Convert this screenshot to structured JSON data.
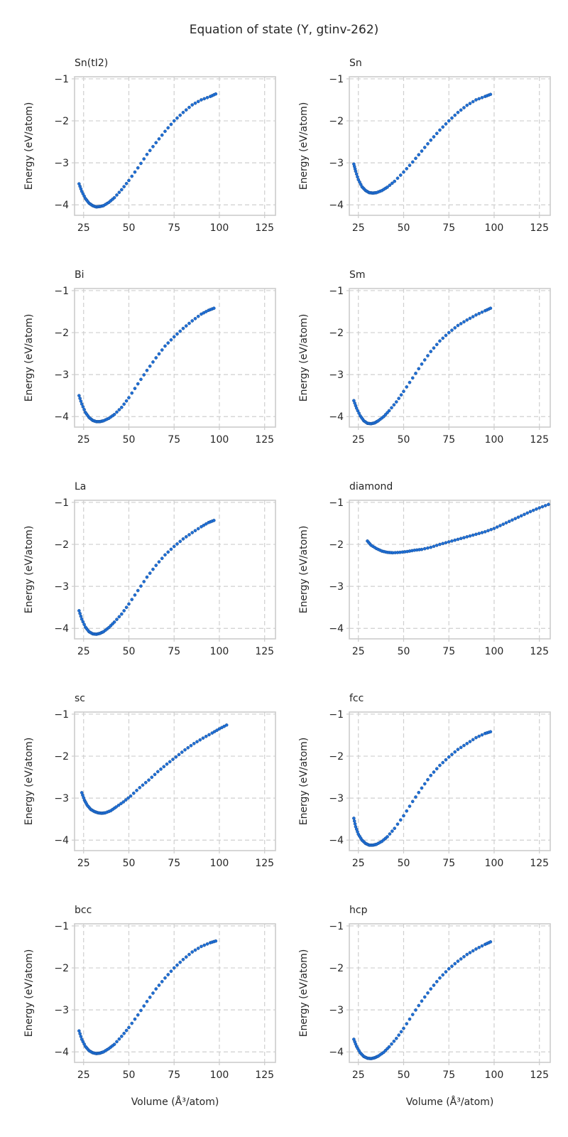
{
  "figure": {
    "title": "Equation of state (Y, gtinv-262)",
    "xlabel": "Volume (Å³/atom)",
    "ylabel": "Energy (eV/atom)"
  },
  "colors": {
    "points": "#1f6fd6",
    "points_edge": "#0d3f80",
    "grid": "#cfcfcf",
    "frame": "#cccccc"
  },
  "chart_data": [
    {
      "type": "scatter",
      "title": "Sn(tI2)",
      "xlabel": "",
      "ylabel": "Energy (eV/atom)",
      "xlim": [
        20,
        131
      ],
      "ylim": [
        -4.25,
        -0.95
      ],
      "xticks": [
        25,
        50,
        75,
        100,
        125
      ],
      "yticks": [
        -4,
        -3,
        -2,
        -1
      ],
      "grid": true,
      "series": [
        {
          "x": [
            22.5,
            24.0,
            26.0,
            28.0,
            30.0,
            32.0,
            34.0,
            36.0,
            39.0,
            42.0,
            46.0,
            50.0,
            55.0,
            60.0,
            65.0,
            70.0,
            75.0,
            80.0,
            85.0,
            90.0,
            95.0,
            98.0
          ],
          "y": [
            -3.5,
            -3.68,
            -3.85,
            -3.96,
            -4.02,
            -4.05,
            -4.04,
            -4.02,
            -3.94,
            -3.83,
            -3.64,
            -3.42,
            -3.12,
            -2.8,
            -2.52,
            -2.25,
            -2.0,
            -1.8,
            -1.62,
            -1.5,
            -1.42,
            -1.36
          ]
        }
      ]
    },
    {
      "type": "scatter",
      "title": "Sn",
      "xlabel": "",
      "ylabel": "Energy (eV/atom)",
      "xlim": [
        20,
        131
      ],
      "ylim": [
        -4.25,
        -0.95
      ],
      "xticks": [
        25,
        50,
        75,
        100,
        125
      ],
      "yticks": [
        -4,
        -3,
        -2,
        -1
      ],
      "grid": true,
      "series": [
        {
          "x": [
            22.5,
            23.5,
            25.0,
            27.0,
            29.0,
            31.0,
            33.0,
            35.0,
            38.0,
            41.0,
            45.0,
            50.0,
            55.0,
            60.0,
            65.0,
            70.0,
            75.0,
            80.0,
            85.0,
            90.0,
            95.0,
            98.0
          ],
          "y": [
            -3.03,
            -3.2,
            -3.4,
            -3.57,
            -3.66,
            -3.71,
            -3.72,
            -3.71,
            -3.66,
            -3.58,
            -3.44,
            -3.22,
            -2.98,
            -2.72,
            -2.46,
            -2.22,
            -2.0,
            -1.8,
            -1.63,
            -1.5,
            -1.42,
            -1.37
          ]
        }
      ]
    },
    {
      "type": "scatter",
      "title": "Bi",
      "xlabel": "",
      "ylabel": "Energy (eV/atom)",
      "xlim": [
        20,
        131
      ],
      "ylim": [
        -4.25,
        -0.95
      ],
      "xticks": [
        25,
        50,
        75,
        100,
        125
      ],
      "yticks": [
        -4,
        -3,
        -2,
        -1
      ],
      "grid": true,
      "series": [
        {
          "x": [
            22.5,
            24.0,
            26.0,
            28.0,
            30.0,
            32.0,
            34.0,
            36.0,
            39.0,
            42.0,
            46.0,
            50.0,
            55.0,
            60.0,
            65.0,
            70.0,
            75.0,
            80.0,
            85.0,
            90.0,
            94.0,
            97.0
          ],
          "y": [
            -3.5,
            -3.7,
            -3.9,
            -4.02,
            -4.09,
            -4.12,
            -4.12,
            -4.1,
            -4.04,
            -3.95,
            -3.78,
            -3.55,
            -3.22,
            -2.9,
            -2.6,
            -2.32,
            -2.1,
            -1.9,
            -1.72,
            -1.56,
            -1.47,
            -1.42
          ]
        }
      ]
    },
    {
      "type": "scatter",
      "title": "Sm",
      "xlabel": "",
      "ylabel": "Energy (eV/atom)",
      "xlim": [
        20,
        131
      ],
      "ylim": [
        -4.25,
        -0.95
      ],
      "xticks": [
        25,
        50,
        75,
        100,
        125
      ],
      "yticks": [
        -4,
        -3,
        -2,
        -1
      ],
      "grid": true,
      "series": [
        {
          "x": [
            22.5,
            24.0,
            26.0,
            28.0,
            30.0,
            32.0,
            34.0,
            36.0,
            39.0,
            42.0,
            46.0,
            50.0,
            55.0,
            60.0,
            65.0,
            70.0,
            75.0,
            80.0,
            85.0,
            90.0,
            95.0,
            98.0
          ],
          "y": [
            -3.62,
            -3.8,
            -3.98,
            -4.1,
            -4.16,
            -4.17,
            -4.15,
            -4.1,
            -4.0,
            -3.86,
            -3.65,
            -3.4,
            -3.08,
            -2.75,
            -2.45,
            -2.2,
            -2.0,
            -1.83,
            -1.7,
            -1.58,
            -1.48,
            -1.42
          ]
        }
      ]
    },
    {
      "type": "scatter",
      "title": "La",
      "xlabel": "",
      "ylabel": "Energy (eV/atom)",
      "xlim": [
        20,
        131
      ],
      "ylim": [
        -4.25,
        -0.95
      ],
      "xticks": [
        25,
        50,
        75,
        100,
        125
      ],
      "yticks": [
        -4,
        -3,
        -2,
        -1
      ],
      "grid": true,
      "series": [
        {
          "x": [
            22.5,
            24.0,
            26.0,
            28.0,
            30.0,
            32.0,
            34.0,
            36.0,
            39.0,
            42.0,
            46.0,
            50.0,
            55.0,
            60.0,
            65.0,
            70.0,
            75.0,
            80.0,
            85.0,
            90.0,
            94.0,
            97.0
          ],
          "y": [
            -3.58,
            -3.78,
            -3.97,
            -4.08,
            -4.13,
            -4.14,
            -4.12,
            -4.08,
            -3.98,
            -3.85,
            -3.66,
            -3.42,
            -3.1,
            -2.78,
            -2.5,
            -2.25,
            -2.05,
            -1.87,
            -1.72,
            -1.58,
            -1.48,
            -1.43
          ]
        }
      ]
    },
    {
      "type": "scatter",
      "title": "diamond",
      "xlabel": "",
      "ylabel": "Energy (eV/atom)",
      "xlim": [
        20,
        131
      ],
      "ylim": [
        -4.25,
        -0.95
      ],
      "xticks": [
        25,
        50,
        75,
        100,
        125
      ],
      "yticks": [
        -4,
        -3,
        -2,
        -1
      ],
      "grid": true,
      "series": [
        {
          "x": [
            30.0,
            32.0,
            35.0,
            38.0,
            41.0,
            44.0,
            48.0,
            52.0,
            56.0,
            60.0,
            65.0,
            70.0,
            75.0,
            80.0,
            85.0,
            90.0,
            95.0,
            100.0,
            105.0,
            110.0,
            115.0,
            120.0,
            125.0,
            130.0
          ],
          "y": [
            -1.92,
            -2.02,
            -2.1,
            -2.16,
            -2.19,
            -2.2,
            -2.19,
            -2.17,
            -2.14,
            -2.12,
            -2.07,
            -2.0,
            -1.94,
            -1.88,
            -1.82,
            -1.76,
            -1.7,
            -1.62,
            -1.52,
            -1.42,
            -1.32,
            -1.22,
            -1.13,
            -1.05
          ]
        }
      ]
    },
    {
      "type": "scatter",
      "title": "sc",
      "xlabel": "",
      "ylabel": "Energy (eV/atom)",
      "xlim": [
        20,
        131
      ],
      "ylim": [
        -4.25,
        -0.95
      ],
      "xticks": [
        25,
        50,
        75,
        100,
        125
      ],
      "yticks": [
        -4,
        -3,
        -2,
        -1
      ],
      "grid": true,
      "series": [
        {
          "x": [
            24.0,
            25.5,
            27.0,
            29.0,
            31.0,
            33.0,
            35.0,
            37.0,
            40.0,
            43.0,
            47.0,
            51.0,
            56.0,
            61.0,
            66.0,
            71.0,
            76.0,
            81.0,
            86.0,
            91.0,
            96.0,
            100.0,
            104.0
          ],
          "y": [
            -2.87,
            -3.05,
            -3.17,
            -3.27,
            -3.32,
            -3.35,
            -3.36,
            -3.35,
            -3.3,
            -3.21,
            -3.09,
            -2.95,
            -2.75,
            -2.57,
            -2.37,
            -2.19,
            -2.02,
            -1.85,
            -1.7,
            -1.57,
            -1.45,
            -1.35,
            -1.26
          ]
        }
      ]
    },
    {
      "type": "scatter",
      "title": "fcc",
      "xlabel": "",
      "ylabel": "Energy (eV/atom)",
      "xlim": [
        20,
        131
      ],
      "ylim": [
        -4.25,
        -0.95
      ],
      "xticks": [
        25,
        50,
        75,
        100,
        125
      ],
      "yticks": [
        -4,
        -3,
        -2,
        -1
      ],
      "grid": true,
      "series": [
        {
          "x": [
            22.5,
            23.5,
            25.0,
            27.0,
            29.0,
            31.0,
            33.0,
            35.0,
            38.0,
            41.0,
            45.0,
            50.0,
            55.0,
            60.0,
            65.0,
            70.0,
            75.0,
            80.0,
            85.0,
            90.0,
            95.0,
            98.0
          ],
          "y": [
            -3.48,
            -3.68,
            -3.86,
            -4.0,
            -4.08,
            -4.12,
            -4.12,
            -4.1,
            -4.03,
            -3.92,
            -3.72,
            -3.42,
            -3.08,
            -2.76,
            -2.46,
            -2.22,
            -2.02,
            -1.84,
            -1.7,
            -1.56,
            -1.46,
            -1.42
          ]
        }
      ]
    },
    {
      "type": "scatter",
      "title": "bcc",
      "xlabel": "Volume (Å³/atom)",
      "ylabel": "Energy (eV/atom)",
      "xlim": [
        20,
        131
      ],
      "ylim": [
        -4.25,
        -0.95
      ],
      "xticks": [
        25,
        50,
        75,
        100,
        125
      ],
      "yticks": [
        -4,
        -3,
        -2,
        -1
      ],
      "grid": true,
      "series": [
        {
          "x": [
            22.5,
            24.0,
            26.0,
            28.0,
            30.0,
            32.0,
            34.0,
            36.0,
            39.0,
            42.0,
            46.0,
            50.0,
            55.0,
            60.0,
            65.0,
            70.0,
            75.0,
            80.0,
            85.0,
            90.0,
            95.0,
            98.0
          ],
          "y": [
            -3.5,
            -3.7,
            -3.87,
            -3.97,
            -4.02,
            -4.04,
            -4.03,
            -4.0,
            -3.92,
            -3.82,
            -3.63,
            -3.42,
            -3.12,
            -2.8,
            -2.5,
            -2.24,
            -2.0,
            -1.8,
            -1.62,
            -1.49,
            -1.4,
            -1.36
          ]
        }
      ]
    },
    {
      "type": "scatter",
      "title": "hcp",
      "xlabel": "Volume (Å³/atom)",
      "ylabel": "Energy (eV/atom)",
      "xlim": [
        20,
        131
      ],
      "ylim": [
        -4.25,
        -0.95
      ],
      "xticks": [
        25,
        50,
        75,
        100,
        125
      ],
      "yticks": [
        -4,
        -3,
        -2,
        -1
      ],
      "grid": true,
      "series": [
        {
          "x": [
            22.5,
            24.0,
            26.0,
            28.0,
            30.0,
            32.0,
            34.0,
            36.0,
            39.0,
            42.0,
            46.0,
            50.0,
            55.0,
            60.0,
            65.0,
            70.0,
            75.0,
            80.0,
            85.0,
            90.0,
            95.0,
            98.0
          ],
          "y": [
            -3.7,
            -3.87,
            -4.02,
            -4.11,
            -4.15,
            -4.16,
            -4.14,
            -4.1,
            -4.01,
            -3.88,
            -3.68,
            -3.44,
            -3.11,
            -2.79,
            -2.5,
            -2.24,
            -2.02,
            -1.84,
            -1.68,
            -1.55,
            -1.44,
            -1.38
          ]
        }
      ]
    }
  ]
}
